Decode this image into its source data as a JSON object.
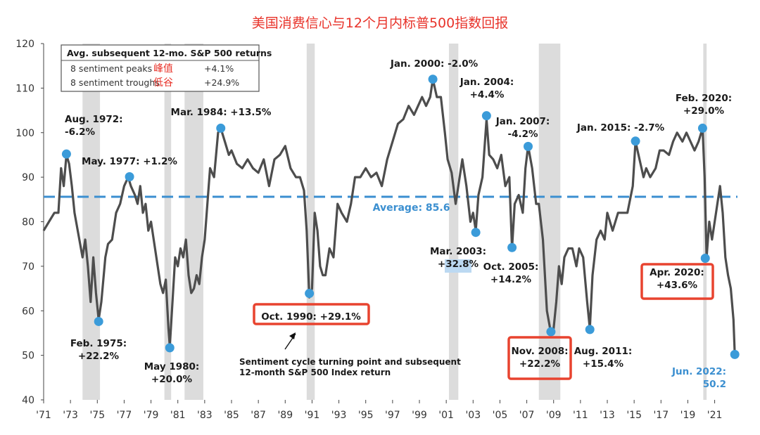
{
  "title": "美国消费信心与12个月内标普500指数回报",
  "colors": {
    "title": "#e8332a",
    "line": "#4d4d4d",
    "recession": "#dcdcdc",
    "marker": "#3b9bd9",
    "average": "#3b8fd0",
    "highlight_box": "#e8432f",
    "label_text": "#1a1a1a",
    "highlight_fill": "#bcd9f2"
  },
  "legend_box": {
    "header": "Avg. subsequent 12-mo. S&P 500 returns",
    "rows": [
      {
        "label": "8 sentiment peaks",
        "cn": "峰值",
        "value": "+4.1%"
      },
      {
        "label": "8 sentiment troughs",
        "cn": "低谷",
        "value": "+24.9%"
      }
    ]
  },
  "average_label": "Average: 85.6",
  "callout_text": [
    "Sentiment cycle turning point and subsequent",
    "12-month S&P 500 Index return"
  ],
  "chart_data": {
    "type": "line",
    "ylim": [
      40,
      120
    ],
    "yticks": [
      40,
      50,
      60,
      70,
      80,
      90,
      100,
      110,
      120
    ],
    "xlim": [
      1971,
      2022.7
    ],
    "xtick_labels": [
      "'71",
      "'73",
      "'75",
      "'77",
      "'79",
      "'81",
      "'83",
      "'85",
      "'87",
      "'89",
      "'91",
      "'93",
      "'95",
      "'97",
      "'99",
      "'01",
      "'03",
      "'05",
      "'07",
      "'09",
      "'11",
      "'13",
      "'15",
      "'17",
      "'19",
      "'21"
    ],
    "xtick_years": [
      1971,
      1973,
      1975,
      1977,
      1979,
      1981,
      1983,
      1985,
      1987,
      1989,
      1991,
      1993,
      1995,
      1997,
      1999,
      2001,
      2003,
      2005,
      2007,
      2009,
      2011,
      2013,
      2015,
      2017,
      2019,
      2021
    ],
    "average": 85.6,
    "recessions": [
      [
        1973.9,
        1975.2
      ],
      [
        1980.0,
        1980.5
      ],
      [
        1981.5,
        1982.9
      ],
      [
        1990.6,
        1991.2
      ],
      [
        2001.2,
        2001.9
      ],
      [
        2007.9,
        2009.5
      ],
      [
        2020.15,
        2020.4
      ]
    ],
    "series": [
      {
        "values": [
          [
            1971.0,
            78
          ],
          [
            1971.4,
            80
          ],
          [
            1971.8,
            82
          ],
          [
            1972.1,
            82
          ],
          [
            1972.3,
            92
          ],
          [
            1972.5,
            88
          ],
          [
            1972.7,
            95
          ],
          [
            1972.9,
            93
          ],
          [
            1973.1,
            88
          ],
          [
            1973.3,
            82
          ],
          [
            1973.6,
            77
          ],
          [
            1973.9,
            72
          ],
          [
            1974.1,
            76
          ],
          [
            1974.3,
            70
          ],
          [
            1974.5,
            62
          ],
          [
            1974.7,
            72
          ],
          [
            1974.9,
            64
          ],
          [
            1975.1,
            58
          ],
          [
            1975.3,
            62
          ],
          [
            1975.6,
            72
          ],
          [
            1975.8,
            75
          ],
          [
            1976.1,
            76
          ],
          [
            1976.4,
            82
          ],
          [
            1976.7,
            84
          ],
          [
            1977.0,
            88
          ],
          [
            1977.3,
            90
          ],
          [
            1977.5,
            88
          ],
          [
            1977.8,
            86
          ],
          [
            1978.0,
            84
          ],
          [
            1978.2,
            88
          ],
          [
            1978.4,
            82
          ],
          [
            1978.6,
            84
          ],
          [
            1978.8,
            78
          ],
          [
            1979.0,
            80
          ],
          [
            1979.2,
            76
          ],
          [
            1979.5,
            70
          ],
          [
            1979.7,
            66
          ],
          [
            1979.9,
            64
          ],
          [
            1980.1,
            67
          ],
          [
            1980.3,
            56
          ],
          [
            1980.4,
            52
          ],
          [
            1980.6,
            62
          ],
          [
            1980.8,
            72
          ],
          [
            1981.0,
            70
          ],
          [
            1981.2,
            74
          ],
          [
            1981.4,
            72
          ],
          [
            1981.6,
            76
          ],
          [
            1981.8,
            68
          ],
          [
            1982.0,
            64
          ],
          [
            1982.2,
            65
          ],
          [
            1982.4,
            68
          ],
          [
            1982.6,
            66
          ],
          [
            1982.8,
            72
          ],
          [
            1983.0,
            76
          ],
          [
            1983.2,
            84
          ],
          [
            1983.4,
            92
          ],
          [
            1983.7,
            90
          ],
          [
            1984.0,
            100
          ],
          [
            1984.2,
            101
          ],
          [
            1984.5,
            98
          ],
          [
            1984.8,
            95
          ],
          [
            1985.0,
            96
          ],
          [
            1985.4,
            93
          ],
          [
            1985.8,
            92
          ],
          [
            1986.2,
            94
          ],
          [
            1986.6,
            92
          ],
          [
            1987.0,
            91
          ],
          [
            1987.4,
            94
          ],
          [
            1987.8,
            88
          ],
          [
            1988.2,
            94
          ],
          [
            1988.6,
            95
          ],
          [
            1989.0,
            97
          ],
          [
            1989.4,
            92
          ],
          [
            1989.8,
            90
          ],
          [
            1990.1,
            90
          ],
          [
            1990.4,
            87
          ],
          [
            1990.6,
            78
          ],
          [
            1990.8,
            63
          ],
          [
            1991.0,
            65
          ],
          [
            1991.2,
            82
          ],
          [
            1991.4,
            78
          ],
          [
            1991.6,
            70
          ],
          [
            1991.8,
            68
          ],
          [
            1992.0,
            68
          ],
          [
            1992.3,
            74
          ],
          [
            1992.6,
            72
          ],
          [
            1992.9,
            84
          ],
          [
            1993.2,
            82
          ],
          [
            1993.6,
            80
          ],
          [
            1993.9,
            84
          ],
          [
            1994.2,
            90
          ],
          [
            1994.6,
            90
          ],
          [
            1995.0,
            92
          ],
          [
            1995.4,
            90
          ],
          [
            1995.8,
            91
          ],
          [
            1996.2,
            88
          ],
          [
            1996.6,
            94
          ],
          [
            1997.0,
            98
          ],
          [
            1997.4,
            102
          ],
          [
            1997.8,
            103
          ],
          [
            1998.2,
            106
          ],
          [
            1998.6,
            104
          ],
          [
            1998.9,
            106
          ],
          [
            1999.2,
            108
          ],
          [
            1999.5,
            106
          ],
          [
            1999.8,
            108
          ],
          [
            2000.0,
            112
          ],
          [
            2000.3,
            108
          ],
          [
            2000.6,
            108
          ],
          [
            2000.9,
            100
          ],
          [
            2001.1,
            94
          ],
          [
            2001.4,
            91
          ],
          [
            2001.7,
            84
          ],
          [
            2001.9,
            88
          ],
          [
            2002.2,
            94
          ],
          [
            2002.5,
            88
          ],
          [
            2002.8,
            80
          ],
          [
            2003.0,
            82
          ],
          [
            2003.2,
            78
          ],
          [
            2003.4,
            86
          ],
          [
            2003.7,
            90
          ],
          [
            2004.0,
            103
          ],
          [
            2004.2,
            95
          ],
          [
            2004.5,
            94
          ],
          [
            2004.8,
            92
          ],
          [
            2005.1,
            95
          ],
          [
            2005.4,
            88
          ],
          [
            2005.7,
            90
          ],
          [
            2005.9,
            74
          ],
          [
            2006.1,
            84
          ],
          [
            2006.4,
            86
          ],
          [
            2006.7,
            82
          ],
          [
            2006.9,
            92
          ],
          [
            2007.1,
            97
          ],
          [
            2007.4,
            92
          ],
          [
            2007.7,
            84
          ],
          [
            2007.9,
            84
          ],
          [
            2008.2,
            76
          ],
          [
            2008.5,
            60
          ],
          [
            2008.8,
            55
          ],
          [
            2009.0,
            56
          ],
          [
            2009.2,
            62
          ],
          [
            2009.4,
            70
          ],
          [
            2009.6,
            66
          ],
          [
            2009.8,
            72
          ],
          [
            2010.1,
            74
          ],
          [
            2010.4,
            74
          ],
          [
            2010.7,
            70
          ],
          [
            2010.9,
            74
          ],
          [
            2011.2,
            72
          ],
          [
            2011.5,
            62
          ],
          [
            2011.7,
            56
          ],
          [
            2011.9,
            68
          ],
          [
            2012.2,
            76
          ],
          [
            2012.5,
            78
          ],
          [
            2012.8,
            76
          ],
          [
            2013.0,
            82
          ],
          [
            2013.4,
            78
          ],
          [
            2013.8,
            82
          ],
          [
            2014.1,
            82
          ],
          [
            2014.5,
            82
          ],
          [
            2014.9,
            88
          ],
          [
            2015.1,
            98
          ],
          [
            2015.4,
            94
          ],
          [
            2015.7,
            90
          ],
          [
            2015.9,
            92
          ],
          [
            2016.2,
            90
          ],
          [
            2016.6,
            92
          ],
          [
            2016.9,
            96
          ],
          [
            2017.2,
            96
          ],
          [
            2017.6,
            95
          ],
          [
            2017.9,
            98
          ],
          [
            2018.2,
            100
          ],
          [
            2018.6,
            98
          ],
          [
            2018.9,
            100
          ],
          [
            2019.2,
            98
          ],
          [
            2019.5,
            96
          ],
          [
            2019.8,
            98
          ],
          [
            2020.0,
            100
          ],
          [
            2020.1,
            101
          ],
          [
            2020.25,
            90
          ],
          [
            2020.4,
            72
          ],
          [
            2020.6,
            80
          ],
          [
            2020.8,
            76
          ],
          [
            2021.0,
            80
          ],
          [
            2021.2,
            84
          ],
          [
            2021.4,
            88
          ],
          [
            2021.6,
            82
          ],
          [
            2021.8,
            72
          ],
          [
            2022.0,
            68
          ],
          [
            2022.2,
            65
          ],
          [
            2022.4,
            58
          ],
          [
            2022.5,
            50
          ]
        ]
      }
    ],
    "markers": [
      {
        "x": 1972.7,
        "y": 95.2,
        "label": [
          "Aug. 1972:",
          "-6.2%"
        ],
        "highlight": false
      },
      {
        "x": 1975.1,
        "y": 57.6,
        "label": [
          "Feb. 1975:",
          "+22.2%"
        ],
        "highlight": false
      },
      {
        "x": 1977.4,
        "y": 90.1,
        "label": [
          "May. 1977: +1.2%"
        ],
        "highlight": false
      },
      {
        "x": 1980.4,
        "y": 51.7,
        "label": [
          "May 1980:",
          "+20.0%"
        ],
        "highlight": false
      },
      {
        "x": 1984.2,
        "y": 101.0,
        "label": [
          "Mar. 1984: +13.5%"
        ],
        "highlight": false
      },
      {
        "x": 1990.8,
        "y": 63.9,
        "label": [
          "Oct. 1990: +29.1%"
        ],
        "highlight": true
      },
      {
        "x": 2000.0,
        "y": 112.0,
        "label": [
          "Jan. 2000: -2.0%"
        ],
        "highlight": false
      },
      {
        "x": 2003.2,
        "y": 77.6,
        "label": [
          "Mar. 2003:",
          "+32.8%"
        ],
        "highlight": false
      },
      {
        "x": 2004.0,
        "y": 103.8,
        "label": [
          "Jan. 2004:",
          "+4.4%"
        ],
        "highlight": false
      },
      {
        "x": 2005.9,
        "y": 74.2,
        "label": [
          "Oct. 2005:",
          "+14.2%"
        ],
        "highlight": false
      },
      {
        "x": 2007.1,
        "y": 96.9,
        "label": [
          "Jan. 2007:",
          "-4.2%"
        ],
        "highlight": false
      },
      {
        "x": 2008.8,
        "y": 55.3,
        "label": [
          "Nov. 2008:",
          "+22.2%"
        ],
        "highlight": true
      },
      {
        "x": 2011.7,
        "y": 55.8,
        "label": [
          "Aug. 2011:",
          "+15.4%"
        ],
        "highlight": false
      },
      {
        "x": 2015.1,
        "y": 98.1,
        "label": [
          "Jan. 2015: -2.7%"
        ],
        "highlight": false
      },
      {
        "x": 2020.1,
        "y": 101.0,
        "label": [
          "Feb. 2020:",
          "+29.0%"
        ],
        "highlight": false
      },
      {
        "x": 2020.3,
        "y": 71.8,
        "label": [
          "Apr. 2020:",
          "+43.6%"
        ],
        "highlight": true
      },
      {
        "x": 2022.5,
        "y": 50.2,
        "label": [
          "Jun. 2022:",
          "50.2"
        ],
        "highlight": false
      }
    ]
  }
}
